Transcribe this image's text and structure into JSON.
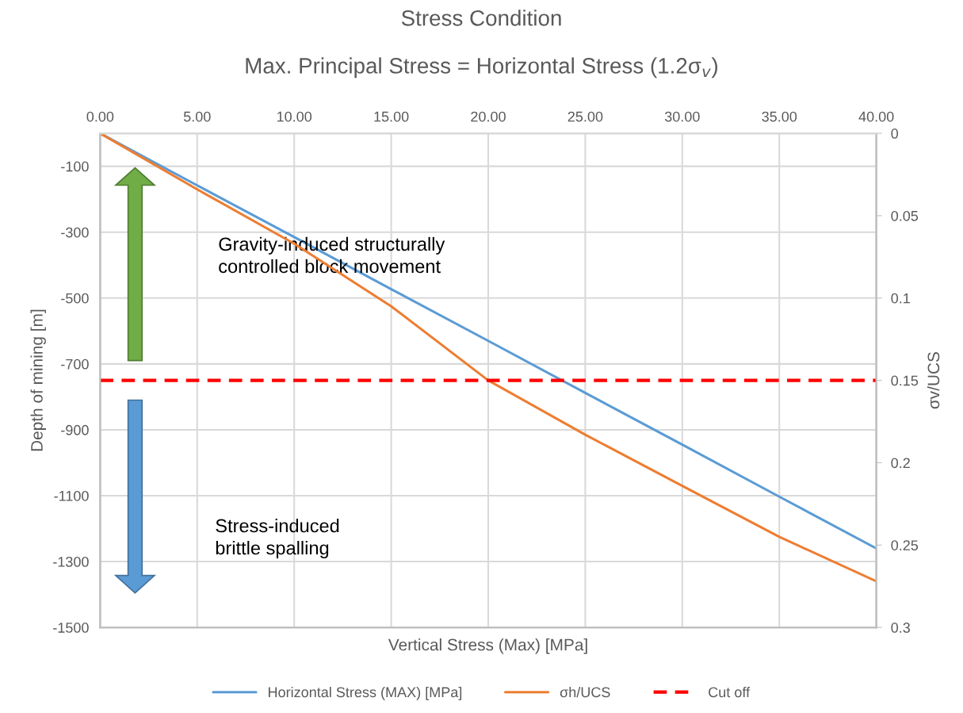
{
  "chart_data": {
    "type": "line",
    "title": "Stress Condition",
    "subtitle": "Max. Principal Stress = Horizontal Stress (1.2σ$_{v}$)",
    "xlabel": "Vertical Stress (Max) [MPa]",
    "ylabel": "Depth of mining [m]",
    "y2label": "σv/UCS",
    "x": [
      0,
      5,
      10,
      15,
      20,
      25,
      30,
      35,
      40
    ],
    "series": [
      {
        "name": "Horizontal Stress (MAX) [MPa]",
        "color": "#5b9bd5",
        "values": [
          0,
          -158,
          -315,
          -473,
          -630,
          -788,
          -945,
          -1103,
          -1260
        ]
      },
      {
        "name": "σh/UCS",
        "color": "#ed7d31",
        "axis": "y2",
        "values": [
          0,
          0.034,
          0.067,
          0.105,
          0.15,
          0.183,
          0.214,
          0.245,
          0.272
        ]
      }
    ],
    "ref_lines": [
      {
        "axis": "y2",
        "value": 0.15,
        "label": "Cut off",
        "color": "#ff0000",
        "line_style": "dashed"
      }
    ],
    "annotations": [
      "Gravity-induced structurally\ncontrolled block movement",
      "Stress-induced\nbrittle spalling"
    ],
    "xlim": [
      0,
      40
    ],
    "xticks": [
      {
        "value": 0,
        "label": "0.00"
      },
      {
        "value": 5,
        "label": "5.00"
      },
      {
        "value": 10,
        "label": "10.00"
      },
      {
        "value": 15,
        "label": "15.00"
      },
      {
        "value": 20,
        "label": "20.00"
      },
      {
        "value": 25,
        "label": "25.00"
      },
      {
        "value": 30,
        "label": "30.00"
      },
      {
        "value": 35,
        "label": "35.00"
      },
      {
        "value": 40,
        "label": "40.00"
      }
    ],
    "ylim": [
      -1500,
      0
    ],
    "yticks": [
      -1500,
      -1300,
      -1100,
      -900,
      -700,
      -500,
      -300,
      -100
    ],
    "y2lim": [
      0.3,
      0
    ],
    "y2ticks": [
      0,
      0.05,
      0.1,
      0.15,
      0.2,
      0.25,
      0.3
    ],
    "grid": true,
    "legend": "bottom",
    "line_style": "solid",
    "marker": "none"
  }
}
